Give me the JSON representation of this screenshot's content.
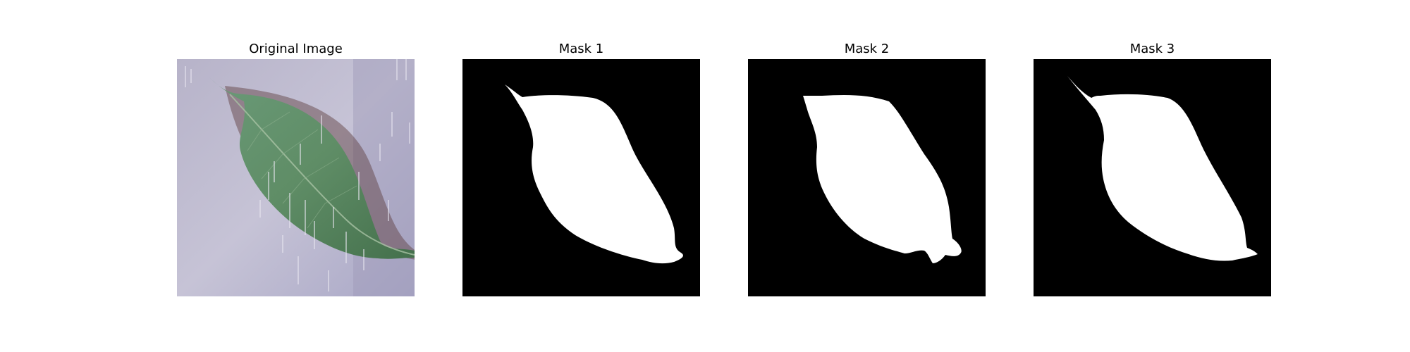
{
  "figure": {
    "panels": [
      {
        "title": "Original Image",
        "kind": "photo"
      },
      {
        "title": "Mask 1",
        "kind": "mask"
      },
      {
        "title": "Mask 2",
        "kind": "mask"
      },
      {
        "title": "Mask 3",
        "kind": "mask"
      }
    ]
  },
  "colors": {
    "background": "#ffffff",
    "mask_background": "#000000",
    "mask_foreground": "#ffffff",
    "leaf": "#5a8a63",
    "leaf_dark": "#3f6b48",
    "paper": "#b9b6cf"
  }
}
